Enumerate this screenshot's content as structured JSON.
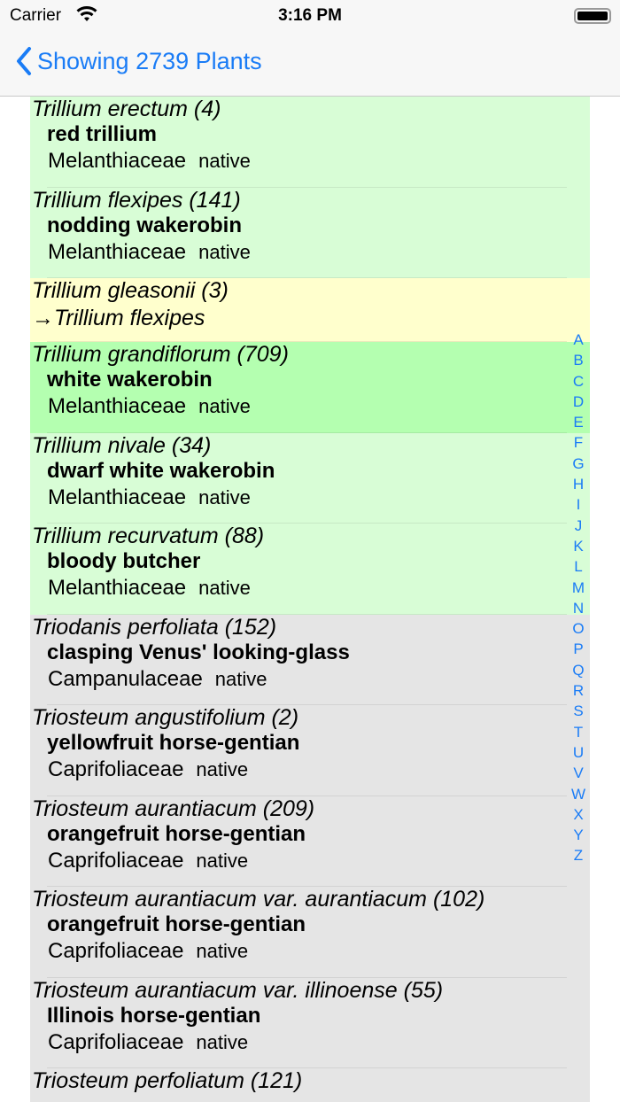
{
  "status_bar": {
    "carrier": "Carrier",
    "time": "3:16 PM"
  },
  "nav": {
    "back_label": "Showing 2739 Plants"
  },
  "colors": {
    "native_light": "#d8fdd6",
    "native_selected": "#b4ffb0",
    "synonym": "#ffffcd",
    "other": "#e5e5e5",
    "accent": "#1a7cf6"
  },
  "rows": [
    {
      "sci": "Trillium erectum  (4)",
      "common": "red trillium",
      "family": "Melanthiaceae",
      "status": "native",
      "bg": "#d8fdd6"
    },
    {
      "sci": "Trillium flexipes  (141)",
      "common": "nodding wakerobin",
      "family": "Melanthiaceae",
      "status": "native",
      "bg": "#d8fdd6"
    },
    {
      "sci": "Trillium gleasonii  (3)",
      "synonym_of": "→Trillium flexipes",
      "bg": "#ffffcd"
    },
    {
      "sci": "Trillium grandiflorum  (709)",
      "common": "white wakerobin",
      "family": "Melanthiaceae",
      "status": "native",
      "bg": "#b4ffb0"
    },
    {
      "sci": "Trillium nivale  (34)",
      "common": "dwarf white wakerobin",
      "family": "Melanthiaceae",
      "status": "native",
      "bg": "#d8fdd6"
    },
    {
      "sci": "Trillium recurvatum  (88)",
      "common": "bloody butcher",
      "family": "Melanthiaceae",
      "status": "native",
      "bg": "#d8fdd6"
    },
    {
      "sci": "Triodanis perfoliata  (152)",
      "common": "clasping Venus' looking-glass",
      "family": "Campanulaceae",
      "status": "native",
      "bg": "#e5e5e5"
    },
    {
      "sci": "Triosteum angustifolium  (2)",
      "common": "yellowfruit horse-gentian",
      "family": "Caprifoliaceae",
      "status": "native",
      "bg": "#e5e5e5"
    },
    {
      "sci": "Triosteum aurantiacum  (209)",
      "common": "orangefruit horse-gentian",
      "family": "Caprifoliaceae",
      "status": "native",
      "bg": "#e5e5e5"
    },
    {
      "sci": "Triosteum aurantiacum var. aurantiacum  (102)",
      "common": "orangefruit horse-gentian",
      "family": "Caprifoliaceae",
      "status": "native",
      "bg": "#e5e5e5"
    },
    {
      "sci": "Triosteum aurantiacum var. illinoense  (55)",
      "common": "Illinois horse-gentian",
      "family": "Caprifoliaceae",
      "status": "native",
      "bg": "#e5e5e5"
    },
    {
      "sci": "Triosteum perfoliatum  (121)",
      "bg": "#e5e5e5"
    }
  ],
  "index_letters": [
    "A",
    "B",
    "C",
    "D",
    "E",
    "F",
    "G",
    "H",
    "I",
    "J",
    "K",
    "L",
    "M",
    "N",
    "O",
    "P",
    "Q",
    "R",
    "S",
    "T",
    "U",
    "V",
    "W",
    "X",
    "Y",
    "Z"
  ]
}
